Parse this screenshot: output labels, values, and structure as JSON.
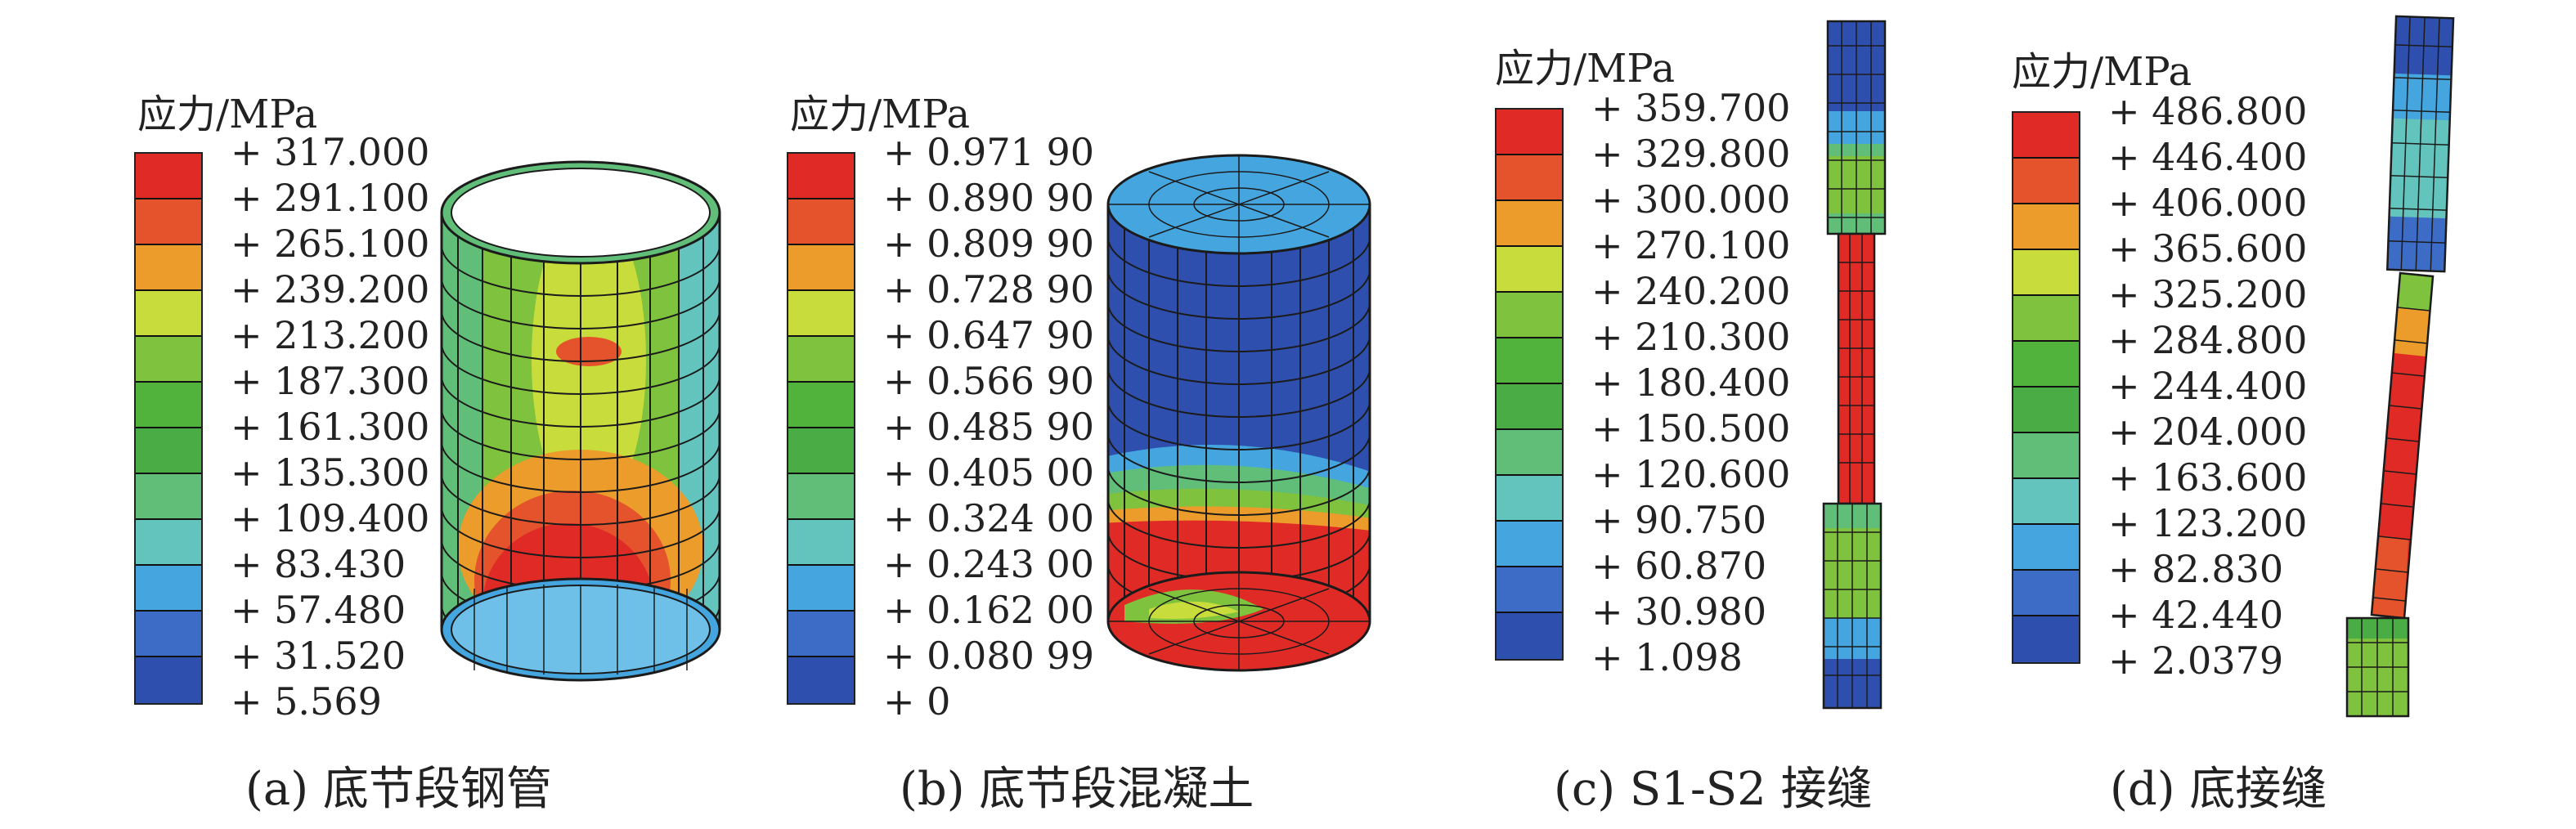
{
  "panels": [
    {
      "id": "a",
      "legend_title": "应力/MPa",
      "levels": [
        "+ 317.000",
        "+ 291.100",
        "+ 265.100",
        "+ 239.200",
        "+ 213.200",
        "+ 187.300",
        "+ 161.300",
        "+ 135.300",
        "+ 109.400",
        "+ 83.430",
        "+ 57.480",
        "+ 31.520",
        "+ 5.569"
      ],
      "caption": "(a) 底节段钢管"
    },
    {
      "id": "b",
      "legend_title": "应力/MPa",
      "levels": [
        "+ 0.971 90",
        "+ 0.890 90",
        "+ 0.809 90",
        "+ 0.728 90",
        "+ 0.647 90",
        "+ 0.566 90",
        "+ 0.485 90",
        "+ 0.405 00",
        "+ 0.324 00",
        "+ 0.243 00",
        "+ 0.162 00",
        "+ 0.080 99",
        "+ 0"
      ],
      "caption": "(b) 底节段混凝土"
    },
    {
      "id": "c",
      "legend_title": "应力/MPa",
      "levels": [
        "+ 359.700",
        "+ 329.800",
        "+ 300.000",
        "+ 270.100",
        "+ 240.200",
        "+ 210.300",
        "+ 180.400",
        "+ 150.500",
        "+ 120.600",
        "+ 90.750",
        "+ 60.870",
        "+ 30.980",
        "+ 1.098"
      ],
      "caption": "(c) S1-S2 接缝"
    },
    {
      "id": "d",
      "legend_title": "应力/MPa",
      "levels": [
        "+ 486.800",
        "+ 446.400",
        "+ 406.000",
        "+ 365.600",
        "+ 325.200",
        "+ 284.800",
        "+ 244.400",
        "+ 204.000",
        "+ 163.600",
        "+ 123.200",
        "+ 82.830",
        "+ 42.440",
        "+ 2.0379"
      ],
      "caption": "(d) 底接缝"
    }
  ],
  "colors": {
    "scale": [
      "#e02a26",
      "#e4532b",
      "#ec9c2a",
      "#c8dc3c",
      "#7ec23d",
      "#52b33c",
      "#4aac44",
      "#61be78",
      "#63c4bd",
      "#45a6df",
      "#3d6cc7",
      "#2f4fae"
    ]
  }
}
